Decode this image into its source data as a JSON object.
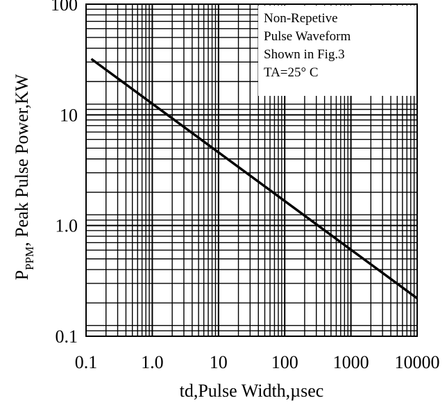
{
  "chart_data": {
    "type": "line",
    "x_scale": "log",
    "y_scale": "log",
    "xlim": [
      0.1,
      10000
    ],
    "ylim": [
      0.1,
      100
    ],
    "x_ticks": [
      0.1,
      1,
      10,
      100,
      1000,
      10000
    ],
    "x_tick_labels": [
      "0.1",
      "1.0",
      "10",
      "100",
      "1000",
      "10000"
    ],
    "y_ticks": [
      0.1,
      1,
      10,
      100
    ],
    "y_tick_labels": [
      "0.1",
      "1.0",
      "10",
      "100"
    ],
    "xlabel": "td,Pulse Width,µsec",
    "ylabel": {
      "prefix": "P",
      "subscript": "PPM",
      "suffix": ", Peak Pulse Power,KW"
    },
    "grid": true,
    "series": [
      {
        "x": [
          0.12,
          10000
        ],
        "y": [
          32,
          0.22
        ],
        "color": "#000000"
      }
    ],
    "annotation_lines": [
      "Non-Repetive",
      "Pulse Waveform",
      "Shown in Fig.3",
      "TA=25°  C"
    ]
  }
}
